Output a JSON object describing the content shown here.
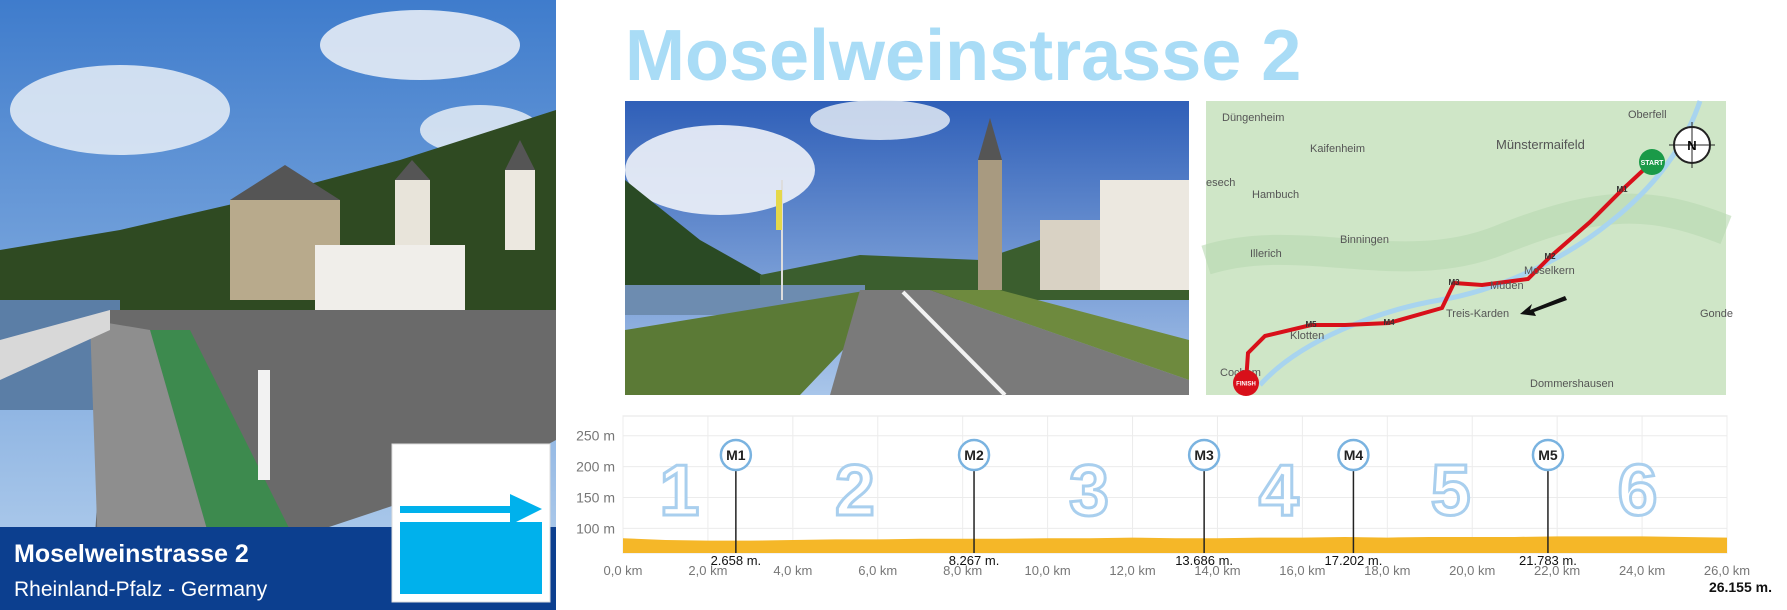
{
  "header": {
    "title": "Moselweinstrasse 2"
  },
  "banner": {
    "title": "Moselweinstrasse 2",
    "subtitle": "Rheinland-Pfalz - Germany"
  },
  "map": {
    "labels": [
      "Düngenheim",
      "Kaifenheim",
      "Münstermaifeld",
      "Oberfell",
      "esech",
      "Hambuch",
      "Binningen",
      "Illerich",
      "Moselkern",
      "Müden",
      "Treis-Karden",
      "Klotten",
      "Cochem",
      "Dommershausen",
      "Gonde"
    ],
    "route_labels": [
      "START",
      "M1",
      "M2",
      "M3",
      "M4",
      "M5",
      "FINISH"
    ],
    "compass": "N"
  },
  "chart_data": {
    "type": "area",
    "color": "#f5b728",
    "grid": true,
    "x": [
      0,
      1,
      2,
      3,
      4,
      5,
      6,
      7,
      8,
      9,
      10,
      11,
      12,
      13,
      14,
      15,
      16,
      17,
      18,
      19,
      20,
      21,
      22,
      23,
      24,
      25,
      26
    ],
    "values": [
      84,
      81,
      80,
      80,
      81,
      82,
      82,
      83,
      83,
      83,
      84,
      84,
      85,
      84,
      84,
      85,
      85,
      86,
      85,
      86,
      86,
      86,
      87,
      87,
      87,
      86,
      85
    ],
    "xlim": [
      0,
      26
    ],
    "ylim": [
      60,
      282
    ],
    "xticks": [
      {
        "value": 0,
        "label": "0,0 km"
      },
      {
        "value": 2,
        "label": "2,0 km"
      },
      {
        "value": 4,
        "label": "4,0 km"
      },
      {
        "value": 6,
        "label": "6,0 km"
      },
      {
        "value": 8,
        "label": "8,0 km"
      },
      {
        "value": 10,
        "label": "10,0 km"
      },
      {
        "value": 12,
        "label": "12,0 km"
      },
      {
        "value": 14,
        "label": "14,0 km"
      },
      {
        "value": 16,
        "label": "16,0 km"
      },
      {
        "value": 18,
        "label": "18,0 km"
      },
      {
        "value": 20,
        "label": "20,0 km"
      },
      {
        "value": 22,
        "label": "22,0 km"
      },
      {
        "value": 24,
        "label": "24,0 km"
      },
      {
        "value": 26,
        "label": "26,0 km"
      }
    ],
    "yticks": [
      {
        "value": 100,
        "label": "100 m"
      },
      {
        "value": 150,
        "label": "150 m"
      },
      {
        "value": 200,
        "label": "200 m"
      },
      {
        "value": 250,
        "label": "250 m"
      }
    ],
    "markers": [
      {
        "name": "M1",
        "value": 2.658,
        "label": "2.658 m."
      },
      {
        "name": "M2",
        "value": 8.267,
        "label": "8.267 m."
      },
      {
        "name": "M3",
        "value": 13.686,
        "label": "13.686 m."
      },
      {
        "name": "M4",
        "value": 17.202,
        "label": "17.202 m."
      },
      {
        "name": "M5",
        "value": 21.783,
        "label": "21.783 m."
      }
    ],
    "segments": [
      "1",
      "2",
      "3",
      "4",
      "5",
      "6"
    ],
    "total": {
      "value": 26.155,
      "label": "26.155 m."
    }
  }
}
